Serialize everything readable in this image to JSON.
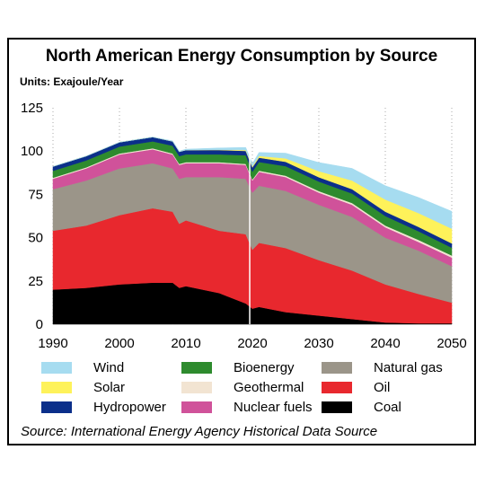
{
  "chart_data": {
    "type": "area",
    "title": "North American Energy Consumption by Source",
    "units_label": "Units: Exajoule/Year",
    "source": "Source: International Energy Agency Historical Data Source",
    "ylim": [
      0,
      125
    ],
    "xlim": [
      1990,
      2050
    ],
    "y_ticks": [
      "0",
      "25",
      "50",
      "75",
      "100",
      "125"
    ],
    "x_ticks": [
      "1990",
      "2000",
      "2010",
      "2020",
      "2030",
      "2040",
      "2050"
    ],
    "grid": "vertical dotted",
    "stack_order_bottom_to_top": [
      "Coal",
      "Oil",
      "Natural gas",
      "Nuclear fuels",
      "Geothermal",
      "Bioenergy",
      "Hydropower",
      "Solar",
      "Wind"
    ],
    "x": [
      1990,
      1995,
      2000,
      2005,
      2008,
      2009,
      2010,
      2015,
      2019,
      2020,
      2021,
      2025,
      2030,
      2035,
      2040,
      2045,
      2050
    ],
    "series": [
      {
        "name": "Coal",
        "color": "#000000",
        "values": [
          20,
          21,
          23,
          24,
          24,
          21,
          22,
          18,
          12,
          9,
          10,
          7,
          5,
          3,
          1,
          0.5,
          0.5
        ]
      },
      {
        "name": "Oil",
        "color": "#e8282e",
        "values": [
          34,
          36,
          40,
          43,
          41,
          37,
          38,
          36,
          40,
          34,
          37,
          37,
          32,
          28,
          22,
          17,
          12
        ]
      },
      {
        "name": "Natural gas",
        "color": "#9b9589",
        "values": [
          24,
          26,
          27,
          26,
          25,
          26,
          25,
          31,
          32,
          33,
          33,
          33,
          32,
          31,
          27,
          25,
          21
        ]
      },
      {
        "name": "Nuclear fuels",
        "color": "#d0529a",
        "values": [
          6,
          7,
          8,
          8,
          8,
          8,
          8,
          8,
          8,
          7,
          8,
          8,
          7,
          7,
          6,
          5,
          5
        ]
      },
      {
        "name": "Geothermal",
        "color": "#f2e4d2",
        "values": [
          0.6,
          0.6,
          0.6,
          0.6,
          0.6,
          0.6,
          0.6,
          0.6,
          0.6,
          0.6,
          0.7,
          0.8,
          0.9,
          1,
          1,
          1.2,
          1.2
        ]
      },
      {
        "name": "Bioenergy",
        "color": "#2e8b2e",
        "values": [
          4,
          4,
          4,
          4,
          4.5,
          4.5,
          4.5,
          4.5,
          5,
          4.5,
          5,
          5.5,
          5.5,
          5.5,
          5.5,
          5,
          4.5
        ]
      },
      {
        "name": "Hydropower",
        "color": "#0b2f8a",
        "values": [
          2.5,
          2.5,
          2.5,
          2.5,
          2.5,
          2.5,
          2.5,
          2.5,
          2.5,
          2.5,
          2.5,
          2.5,
          2.5,
          2.5,
          2.5,
          2.5,
          2.5
        ]
      },
      {
        "name": "Solar",
        "color": "#fef25a",
        "values": [
          0,
          0,
          0,
          0,
          0,
          0,
          0,
          0.2,
          0.5,
          0.6,
          1,
          2,
          3.5,
          5,
          7,
          8,
          8.5
        ]
      },
      {
        "name": "Wind",
        "color": "#a6dcf0",
        "values": [
          0,
          0,
          0,
          0,
          0.3,
          0.4,
          0.5,
          1,
          1.5,
          1.5,
          2,
          3,
          5,
          7,
          8,
          9,
          10
        ]
      }
    ],
    "legend": {
      "placement": "bottom",
      "items": [
        {
          "name": "Wind",
          "color": "#a6dcf0"
        },
        {
          "name": "Solar",
          "color": "#fef25a"
        },
        {
          "name": "Hydropower",
          "color": "#0b2f8a"
        },
        {
          "name": "Bioenergy",
          "color": "#2e8b2e"
        },
        {
          "name": "Geothermal",
          "color": "#f2e4d2"
        },
        {
          "name": "Nuclear fuels",
          "color": "#d0529a"
        },
        {
          "name": "Natural gas",
          "color": "#9b9589"
        },
        {
          "name": "Oil",
          "color": "#e8282e"
        },
        {
          "name": "Coal",
          "color": "#000000"
        }
      ]
    }
  }
}
